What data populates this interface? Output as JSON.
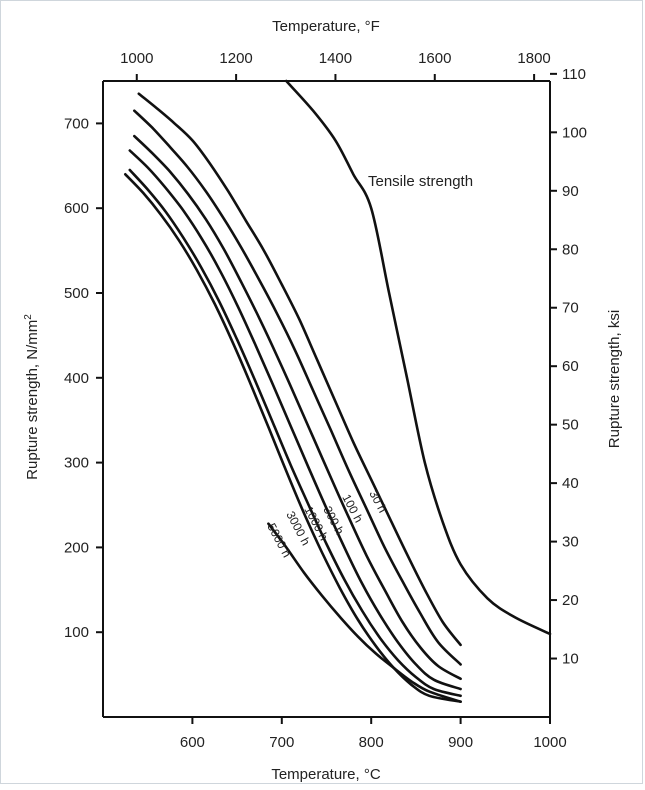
{
  "chart_data": {
    "type": "line",
    "xlabel": "Temperature, °C",
    "xlabel_top": "Temperature, °F",
    "ylabel": "Rupture strength, N/mm²",
    "ylabel_left_parts": [
      "Rupture strength, N/mm",
      "2"
    ],
    "ylabel_right": "Rupture strength, ksi",
    "xlim": [
      500,
      1000
    ],
    "ylim": [
      0,
      750
    ],
    "x_ticks": [
      600,
      700,
      800,
      900,
      1000
    ],
    "x_tick_labels": [
      "600",
      "700",
      "800",
      "900",
      "1000"
    ],
    "y_ticks": [
      100,
      200,
      300,
      400,
      500,
      600,
      700
    ],
    "y_tick_labels": [
      "100",
      "200",
      "300",
      "400",
      "500",
      "600",
      "700"
    ],
    "top_ticks_F": [
      1000,
      1200,
      1400,
      1600,
      1800
    ],
    "top_tick_labels": [
      "1000",
      "1200",
      "1400",
      "1600",
      "1800"
    ],
    "right_ticks_ksi": [
      10,
      20,
      30,
      40,
      50,
      60,
      70,
      80,
      90,
      100,
      110
    ],
    "right_tick_labels": [
      "10",
      "20",
      "30",
      "40",
      "50",
      "60",
      "70",
      "80",
      "90",
      "100",
      "110"
    ],
    "grid": false,
    "series": [
      {
        "name": "Tensile strength",
        "x": [
          705,
          735,
          760,
          780,
          800,
          820,
          840,
          860,
          880,
          900,
          930,
          960,
          1000
        ],
        "y": [
          750,
          715,
          680,
          640,
          600,
          500,
          400,
          300,
          230,
          180,
          140,
          118,
          98
        ]
      },
      {
        "name": "30 h",
        "x": [
          540,
          560,
          580,
          600,
          620,
          640,
          660,
          680,
          700,
          720,
          740,
          760,
          780,
          800,
          820,
          840,
          860,
          880,
          900
        ],
        "y": [
          735,
          718,
          700,
          680,
          652,
          620,
          585,
          550,
          510,
          468,
          420,
          372,
          324,
          280,
          236,
          192,
          150,
          112,
          85
        ]
      },
      {
        "name": "100 h",
        "x": [
          535,
          555,
          575,
          595,
          615,
          635,
          655,
          675,
          695,
          715,
          735,
          755,
          775,
          795,
          815,
          835,
          855,
          875,
          900
        ],
        "y": [
          715,
          695,
          672,
          648,
          620,
          588,
          553,
          515,
          475,
          432,
          385,
          338,
          290,
          245,
          200,
          160,
          122,
          88,
          62
        ]
      },
      {
        "name": "300 h",
        "x": [
          535,
          555,
          575,
          595,
          615,
          635,
          655,
          675,
          695,
          715,
          735,
          755,
          775,
          795,
          815,
          835,
          855,
          875,
          900
        ],
        "y": [
          685,
          665,
          643,
          617,
          587,
          552,
          512,
          470,
          425,
          378,
          330,
          282,
          235,
          190,
          150,
          112,
          82,
          60,
          45
        ]
      },
      {
        "name": "1000 h",
        "x": [
          530,
          550,
          570,
          590,
          610,
          630,
          650,
          670,
          690,
          710,
          730,
          750,
          770,
          790,
          810,
          830,
          850,
          870,
          900
        ],
        "y": [
          668,
          648,
          624,
          597,
          565,
          528,
          486,
          440,
          392,
          343,
          294,
          246,
          200,
          157,
          120,
          88,
          62,
          44,
          33
        ]
      },
      {
        "name": "3000 h",
        "x": [
          530,
          550,
          570,
          590,
          610,
          630,
          650,
          670,
          690,
          710,
          730,
          750,
          770,
          790,
          810,
          830,
          850,
          870,
          900
        ],
        "y": [
          645,
          622,
          596,
          565,
          530,
          490,
          445,
          397,
          347,
          297,
          250,
          204,
          162,
          125,
          93,
          67,
          47,
          33,
          25
        ]
      },
      {
        "name": "5000 h",
        "x": [
          525,
          545,
          565,
          585,
          605,
          625,
          645,
          665,
          685,
          705,
          725,
          745,
          765,
          785,
          805,
          825,
          845,
          865,
          900
        ],
        "y": [
          640,
          618,
          592,
          562,
          527,
          487,
          442,
          393,
          342,
          290,
          240,
          194,
          152,
          115,
          84,
          58,
          38,
          25,
          18
        ]
      },
      {
        "name": "",
        "x": [
          685,
          705,
          725,
          745,
          765,
          785,
          805,
          825,
          845,
          865,
          900
        ],
        "y": [
          228,
          200,
          170,
          143,
          118,
          95,
          75,
          58,
          42,
          30,
          18
        ]
      }
    ],
    "curve_labels": [
      "30 h",
      "100 h",
      "300 h",
      "1000 h",
      "3000 h",
      "5000 h"
    ],
    "annotation": "Tensile strength",
    "legend": "none"
  }
}
